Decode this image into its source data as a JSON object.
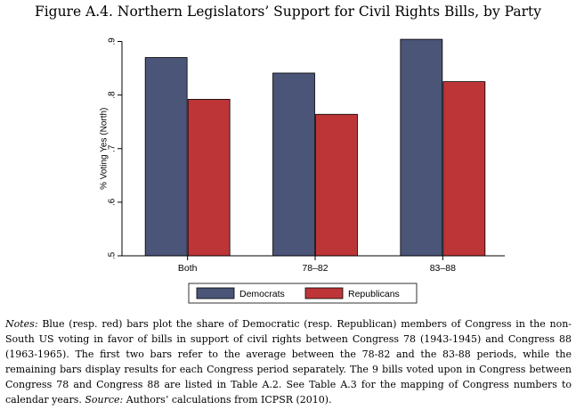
{
  "figure": {
    "title": "Figure A.4. Northern Legislators’ Support for Civil Rights Bills, by Party"
  },
  "chart_data": {
    "type": "bar",
    "title": "",
    "xlabel": "",
    "ylabel": "% Voting Yes (North)",
    "ylim": [
      0.5,
      0.9
    ],
    "yticks": [
      ".5",
      ".6",
      ".7",
      ".8",
      ".9"
    ],
    "grid": false,
    "legend_position": "bottom",
    "categories": [
      "Both",
      "78–82",
      "83–88"
    ],
    "series": [
      {
        "name": "Democrats",
        "color": "#4a5578",
        "values": [
          0.87,
          0.841,
          0.904
        ]
      },
      {
        "name": "Republicans",
        "color": "#be3537",
        "values": [
          0.792,
          0.764,
          0.825
        ]
      }
    ]
  },
  "notes": {
    "label": "Notes:",
    "body": "Blue (resp. red) bars plot the share of Democratic (resp. Republican) members of Congress in the non-South US voting in favor of bills in support of civil rights between Congress 78 (1943-1945) and Congress 88 (1963-1965). The first two bars refer to the average between the 78-82 and the 83-88 periods, while the remaining bars display results for each Congress period separately. The 9 bills voted upon in Congress between Congress 78 and Congress 88 are listed in Table A.2. See Table A.3 for the mapping of Congress numbers to calendar years.",
    "source_label": "Source:",
    "source": "Authors’ calculations from ICPSR (2010)."
  }
}
